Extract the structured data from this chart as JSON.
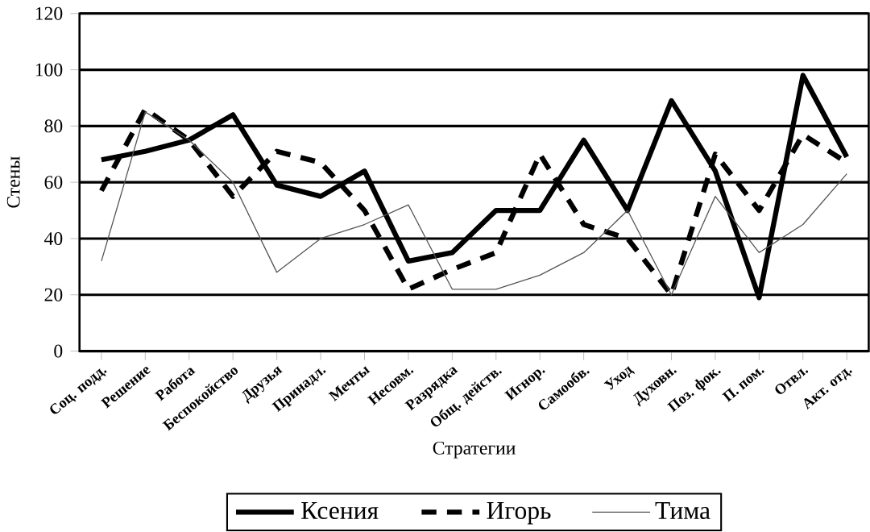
{
  "chart_data": {
    "type": "line",
    "xlabel": "Стратегии",
    "ylabel": "Стены",
    "categories": [
      "Соц. подд.",
      "Решение",
      "Работа",
      "Беспокойство",
      "Друзья",
      "Принадл.",
      "Мечты",
      "Несовм.",
      "Разрядка",
      "Общ. действ.",
      "Игнор.",
      "Самообв.",
      "Уход",
      "Духовн.",
      "Поз. фок.",
      "П. пом.",
      "Отвл.",
      "Акт. отд."
    ],
    "series": [
      {
        "name": "Ксения",
        "color": "#000000",
        "line_style": "solid",
        "values": [
          68,
          71,
          75,
          84,
          59,
          55,
          64,
          32,
          35,
          50,
          50,
          75,
          50,
          89,
          64,
          19,
          98,
          69
        ]
      },
      {
        "name": "Игорь",
        "color": "#000000",
        "line_style": "dashed",
        "values": [
          57,
          86,
          75,
          55,
          71,
          67,
          50,
          22,
          29,
          35,
          70,
          45,
          40,
          20,
          70,
          50,
          77,
          67
        ]
      },
      {
        "name": "Тима",
        "color": "#555555",
        "line_style": "solid",
        "values": [
          32,
          85,
          75,
          60,
          28,
          40,
          45,
          52,
          22,
          22,
          27,
          35,
          50,
          20,
          55,
          35,
          45,
          63
        ]
      }
    ],
    "ylim": [
      0,
      120
    ],
    "yticks": [
      0,
      20,
      40,
      60,
      80,
      100,
      120
    ],
    "grid": "y",
    "legend": "bottom",
    "marker": "none"
  }
}
